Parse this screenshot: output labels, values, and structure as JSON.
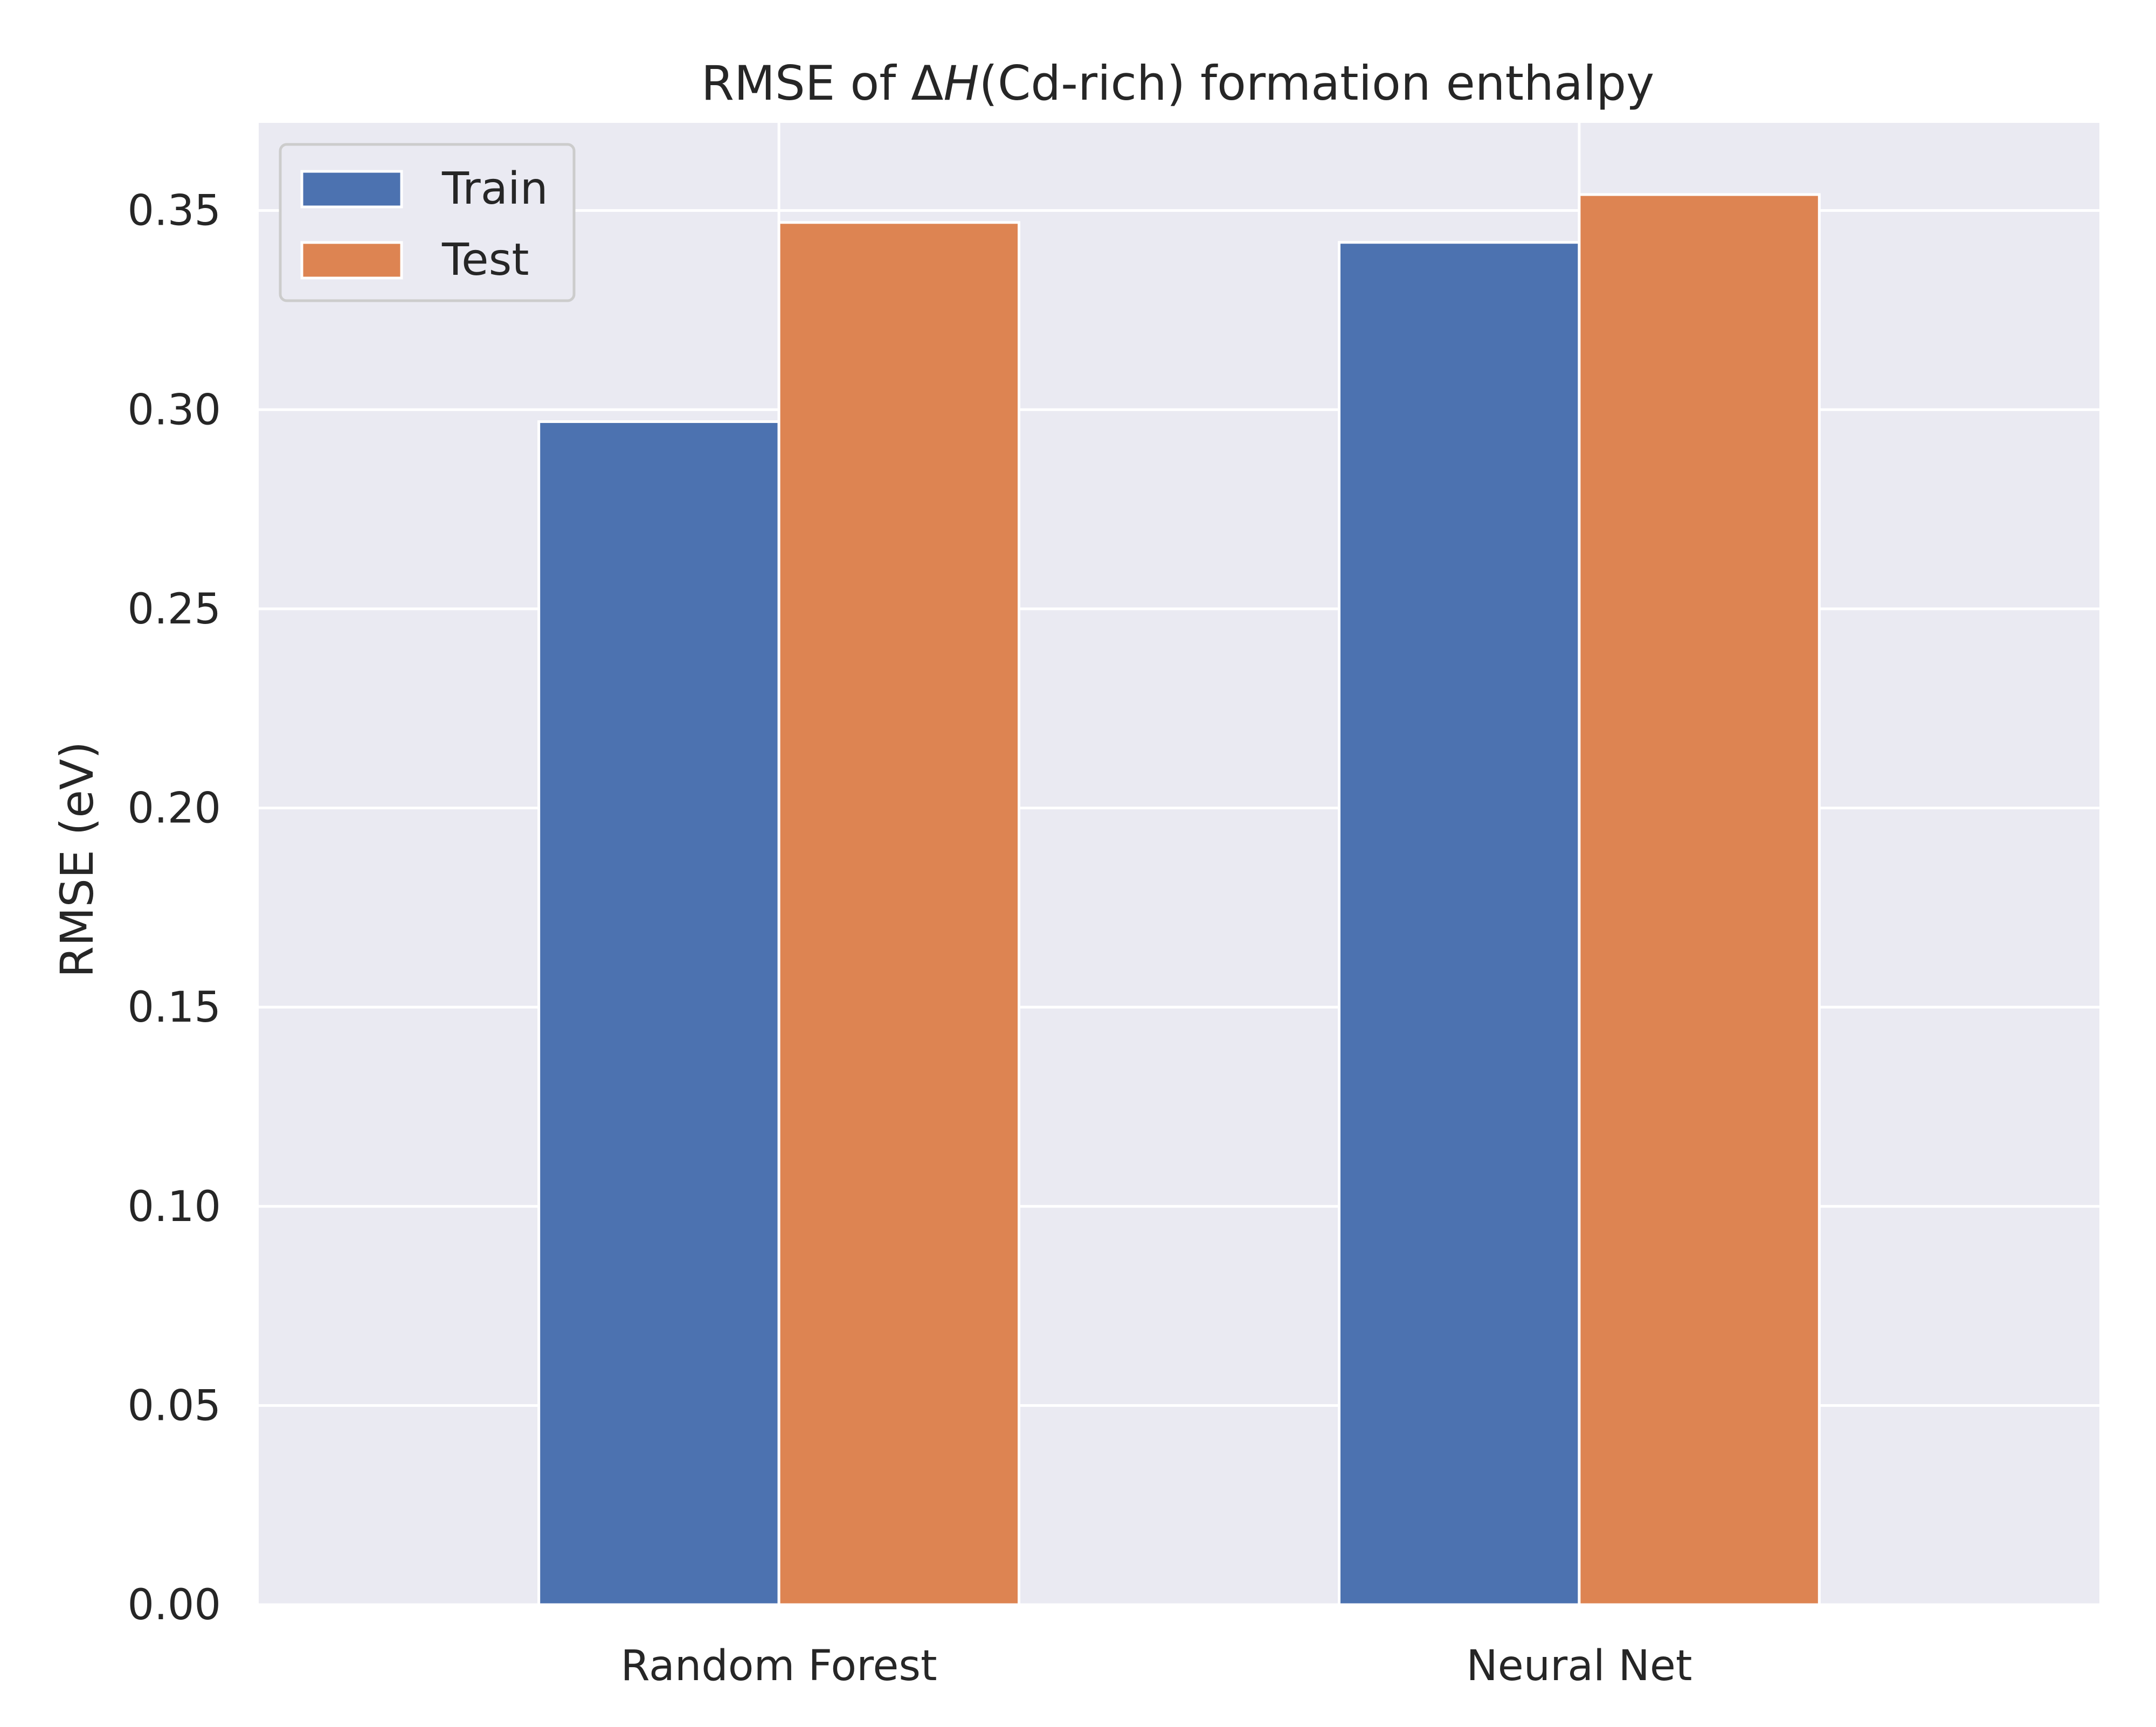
{
  "chart_data": {
    "type": "bar",
    "title": {
      "prefix": "RMSE of Δ",
      "italic": "H",
      "suffix": "(Cd-rich) formation enthalpy"
    },
    "xlabel": "",
    "ylabel": "RMSE (eV)",
    "categories": [
      "Random Forest",
      "Neural Net"
    ],
    "series": [
      {
        "name": "Train",
        "color": "#4c72b0",
        "values": [
          0.297,
          0.342
        ]
      },
      {
        "name": "Test",
        "color": "#dd8452",
        "values": [
          0.347,
          0.354
        ]
      }
    ],
    "ylim": [
      0,
      0.372
    ],
    "yticks": [
      "0.00",
      "0.05",
      "0.10",
      "0.15",
      "0.20",
      "0.25",
      "0.30",
      "0.35"
    ],
    "grid": true,
    "legend_position": "top-left",
    "plot_background": "#eaeaf2",
    "grid_color": "#ffffff"
  }
}
